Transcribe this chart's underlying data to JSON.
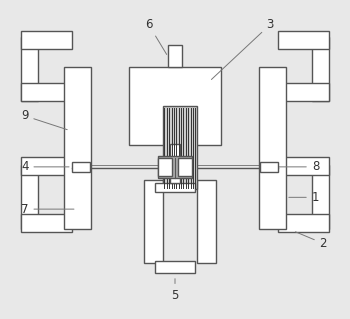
{
  "bg_color": "#e8e8e8",
  "line_color": "#555555",
  "white": "#ffffff",
  "dark_coil": "#666666",
  "mid_gray": "#aaaaaa",
  "label_color": "#333333",
  "fig_width": 3.5,
  "fig_height": 3.19,
  "dpi": 100
}
